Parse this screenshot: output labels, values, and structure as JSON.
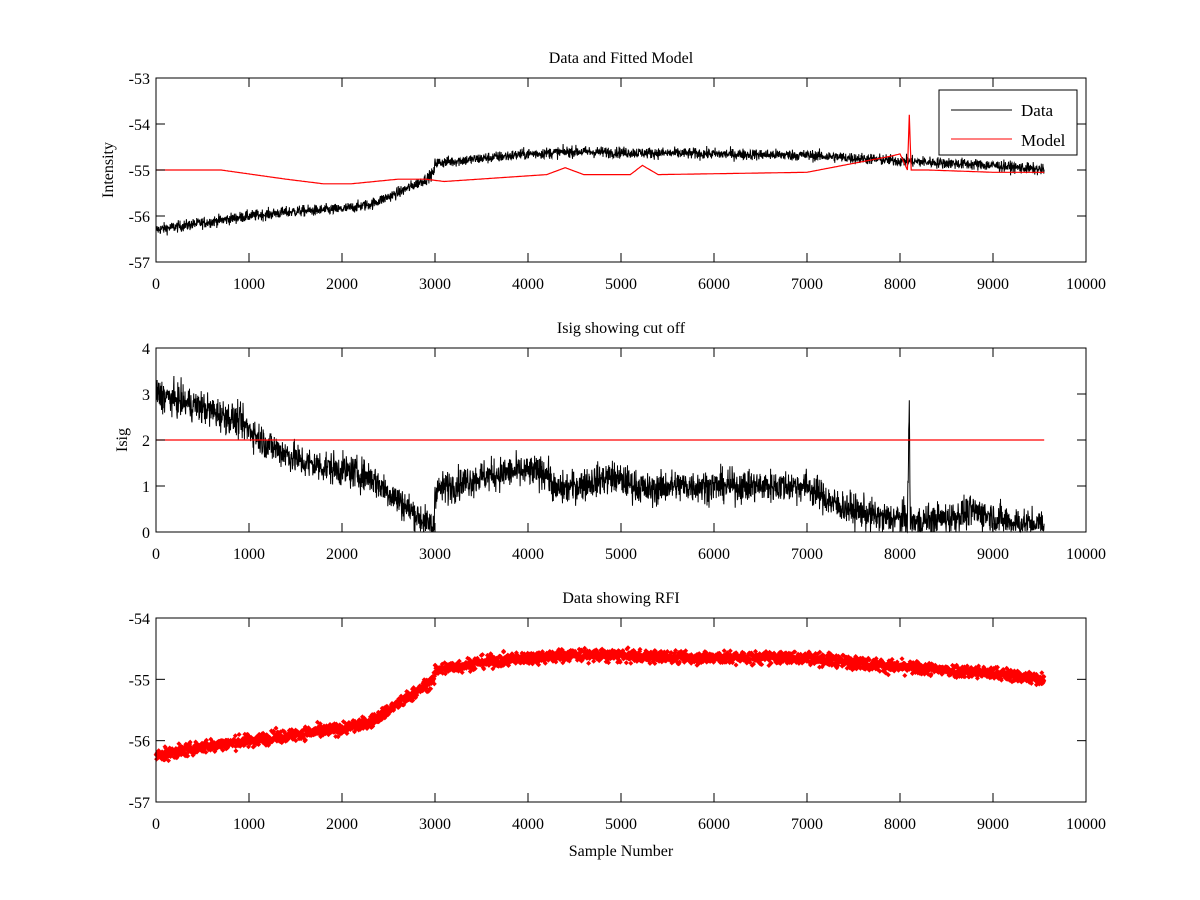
{
  "colors": {
    "data": "#000000",
    "model": "#ff0000",
    "rfi": "#ff0000",
    "frame": "#000000",
    "background": "#ffffff"
  },
  "chart_data": [
    {
      "id": "top",
      "type": "line",
      "title": "Data and Fitted Model",
      "xlabel": "",
      "ylabel": "Intensity",
      "xlim": [
        0,
        10000
      ],
      "ylim": [
        -57,
        -53
      ],
      "xticks": [
        0,
        1000,
        2000,
        3000,
        4000,
        5000,
        6000,
        7000,
        8000,
        9000,
        10000
      ],
      "xtick_labels": [
        "0",
        "1000",
        "2000",
        "3000",
        "4000",
        "5000",
        "6000",
        "7000",
        "8000",
        "9000",
        "10000"
      ],
      "yticks": [
        -57,
        -56,
        -55,
        -54,
        -53
      ],
      "ytick_labels": [
        "-57",
        "-56",
        "-55",
        "-54",
        "-53"
      ],
      "legend": {
        "placement": "top-right",
        "entries": [
          "Data",
          "Model"
        ]
      },
      "series": [
        {
          "name": "Data",
          "style": "noisy-line",
          "noise": 0.12,
          "x": [
            0,
            500,
            1000,
            1500,
            2000,
            2300,
            2600,
            2900,
            2990,
            3000,
            3500,
            4000,
            4500,
            5000,
            6000,
            7000,
            8000,
            9000,
            9550
          ],
          "y": [
            -56.3,
            -56.15,
            -56.0,
            -55.9,
            -55.85,
            -55.75,
            -55.5,
            -55.2,
            -55.05,
            -54.85,
            -54.75,
            -54.65,
            -54.6,
            -54.62,
            -54.65,
            -54.68,
            -54.8,
            -54.9,
            -55.0
          ]
        },
        {
          "name": "Model",
          "style": "line",
          "x": [
            0,
            700,
            1400,
            1800,
            2100,
            2600,
            2900,
            3100,
            4200,
            4400,
            4600,
            5100,
            5230,
            5400,
            7000,
            7900,
            8000,
            8080,
            8100,
            8120,
            8300,
            9000,
            9550
          ],
          "y": [
            -55.0,
            -55.0,
            -55.2,
            -55.3,
            -55.3,
            -55.2,
            -55.2,
            -55.25,
            -55.1,
            -54.95,
            -55.1,
            -55.1,
            -54.9,
            -55.1,
            -55.05,
            -54.7,
            -54.65,
            -55.0,
            -53.8,
            -55.0,
            -55.0,
            -55.05,
            -55.05
          ]
        }
      ]
    },
    {
      "id": "middle",
      "type": "line",
      "title": "Isig showing cut off",
      "xlabel": "",
      "ylabel": "Isig",
      "xlim": [
        0,
        10000
      ],
      "ylim": [
        0,
        4
      ],
      "xticks": [
        0,
        1000,
        2000,
        3000,
        4000,
        5000,
        6000,
        7000,
        8000,
        9000,
        10000
      ],
      "xtick_labels": [
        "0",
        "1000",
        "2000",
        "3000",
        "4000",
        "5000",
        "6000",
        "7000",
        "8000",
        "9000",
        "10000"
      ],
      "yticks": [
        0,
        1,
        2,
        3,
        4
      ],
      "ytick_labels": [
        "0",
        "1",
        "2",
        "3",
        "4"
      ],
      "series": [
        {
          "name": "Isig",
          "style": "noisy-line",
          "noise": 0.35,
          "x": [
            0,
            500,
            900,
            1200,
            1600,
            2000,
            2300,
            2600,
            2900,
            2990,
            3000,
            3500,
            3800,
            4200,
            4300,
            4900,
            5300,
            5500,
            6000,
            7000,
            7300,
            7800,
            8000,
            8080,
            8100,
            8110,
            8120,
            8500,
            8800,
            9200,
            9550
          ],
          "y": [
            3.0,
            2.7,
            2.4,
            1.9,
            1.5,
            1.35,
            1.2,
            0.7,
            0.2,
            0.1,
            0.9,
            1.2,
            1.3,
            1.3,
            0.9,
            1.2,
            0.9,
            1.0,
            1.0,
            1.0,
            0.6,
            0.3,
            0.3,
            0.3,
            2.7,
            0.3,
            0.2,
            0.3,
            0.45,
            0.2,
            0.15
          ]
        },
        {
          "name": "Cut off",
          "style": "line",
          "x": [
            0,
            9550
          ],
          "y": [
            2,
            2
          ]
        }
      ]
    },
    {
      "id": "bottom",
      "type": "scatter",
      "title": "Data showing RFI",
      "xlabel": "Sample Number",
      "ylabel": "",
      "xlim": [
        0,
        10000
      ],
      "ylim": [
        -57,
        -54
      ],
      "xticks": [
        0,
        1000,
        2000,
        3000,
        4000,
        5000,
        6000,
        7000,
        8000,
        9000,
        10000
      ],
      "xtick_labels": [
        "0",
        "1000",
        "2000",
        "3000",
        "4000",
        "5000",
        "6000",
        "7000",
        "8000",
        "9000",
        "10000"
      ],
      "yticks": [
        -57,
        -56,
        -55,
        -54
      ],
      "ytick_labels": [
        "-57",
        "-56",
        "-55",
        "-54"
      ],
      "series": [
        {
          "name": "Data (RFI marked)",
          "style": "markers",
          "noise": 0.1,
          "x": [
            0,
            500,
            1000,
            1500,
            2000,
            2300,
            2600,
            2900,
            2990,
            3000,
            3500,
            4000,
            4500,
            5000,
            6000,
            7000,
            8000,
            9000,
            9550
          ],
          "y": [
            -56.25,
            -56.1,
            -56.0,
            -55.9,
            -55.8,
            -55.7,
            -55.4,
            -55.1,
            -55.0,
            -54.85,
            -54.72,
            -54.65,
            -54.6,
            -54.62,
            -54.65,
            -54.65,
            -54.8,
            -54.9,
            -55.0
          ]
        }
      ]
    }
  ]
}
